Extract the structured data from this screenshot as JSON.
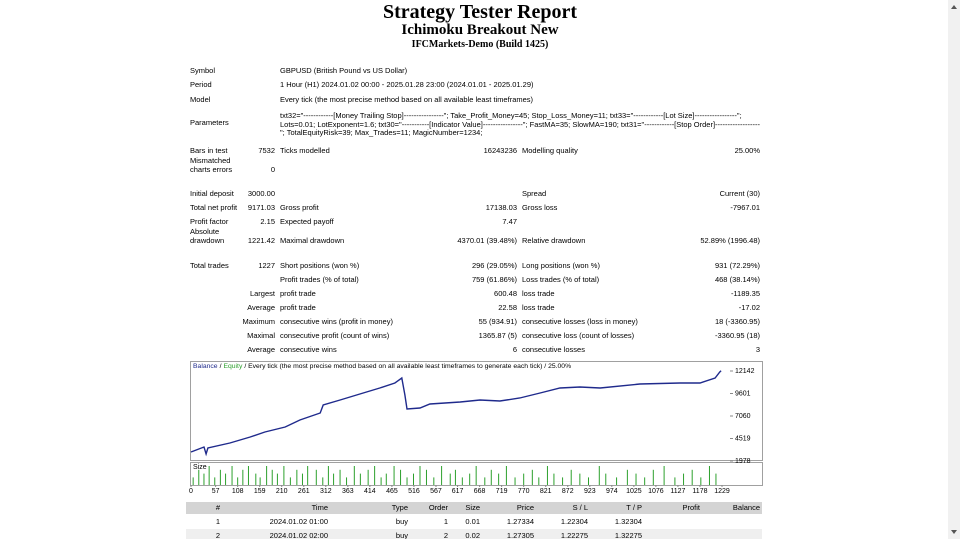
{
  "header": {
    "title": "Strategy Tester Report",
    "subtitle": "Ichimoku Breakout New",
    "server": "IFCMarkets-Demo (Build 1425)"
  },
  "info": [
    {
      "label": "Symbol",
      "value": "GBPUSD (British Pound vs US Dollar)"
    },
    {
      "label": "Period",
      "value": "1 Hour (H1) 2024.01.02 00:00 - 2025.01.28 23:00 (2024.01.01 - 2025.01.29)"
    },
    {
      "label": "Model",
      "value": "Every tick (the most precise method based on all available least timeframes)"
    },
    {
      "label": "Parameters",
      "value": "txt32=\"------------[Money Trailing Stop]----------------\"; Take_Profit_Money=45; Stop_Loss_Money=11; txt33=\"------------[Lot Size]-----------------\"; Lots=0.01; LotExponent=1.6; txt30=\"-----------[Indicator Value]----------------\"; FastMA=35; SlowMA=190; txt31=\"------------[Stop Order]------------------\"; TotalEquityRisk=39; Max_Trades=11; MagicNumber=1234;"
    }
  ],
  "stats": [
    {
      "l1": "Bars in test",
      "v1": "7532",
      "l2": "Ticks modelled",
      "v2": "16243236",
      "l3": "Modelling quality",
      "v3": "25.00%"
    },
    {
      "l1": "Mismatched charts errors",
      "v1": "0"
    },
    {
      "l1": "Initial deposit",
      "v1": "3000.00",
      "l3": "Spread",
      "v3": "Current (30)"
    },
    {
      "l1": "Total net profit",
      "v1": "9171.03",
      "l2": "Gross profit",
      "v2": "17138.03",
      "l3": "Gross loss",
      "v3": "-7967.01"
    },
    {
      "l1": "Profit factor",
      "v1": "2.15",
      "l2": "Expected payoff",
      "v2": "7.47"
    },
    {
      "l1": "Absolute drawdown",
      "v1": "1221.42",
      "l2": "Maximal drawdown",
      "v2": "4370.01 (39.48%)",
      "l3": "Relative drawdown",
      "v3": "52.89% (1996.48)"
    },
    {
      "l1": "Total trades",
      "v1": "1227",
      "l2": "Short positions (won %)",
      "v2": "296 (29.05%)",
      "l3": "Long positions (won %)",
      "v3": "931 (72.29%)"
    },
    {
      "l2": "Profit trades (% of total)",
      "v2": "759 (61.86%)",
      "l3": "Loss trades (% of total)",
      "v3": "468 (38.14%)"
    },
    {
      "v1": "Largest",
      "l2": "profit trade",
      "v2": "600.48",
      "l3": "loss trade",
      "v3": "-1189.35"
    },
    {
      "v1": "Average",
      "l2": "profit trade",
      "v2": "22.58",
      "l3": "loss trade",
      "v3": "-17.02"
    },
    {
      "v1": "Maximum",
      "l2": "consecutive wins (profit in money)",
      "v2": "55 (934.91)",
      "l3": "consecutive losses (loss in money)",
      "v3": "18 (-3360.95)"
    },
    {
      "v1": "Maximal",
      "l2": "consecutive profit (count of wins)",
      "v2": "1365.87 (5)",
      "l3": "consecutive loss (count of losses)",
      "v3": "-3360.95 (18)"
    },
    {
      "v1": "Average",
      "l2": "consecutive wins",
      "v2": "6",
      "l3": "consecutive losses",
      "v3": "3"
    }
  ],
  "balance_chart": {
    "legend": {
      "balance": "Balance",
      "separator": "/",
      "equity": "Equity",
      "description": "/ Every tick (the most precise method based on all available least timeframes to generate each tick) / 25.00%"
    },
    "xlim": [
      0,
      1229
    ],
    "xticks": [
      0,
      57,
      108,
      159,
      210,
      261,
      312,
      363,
      414,
      465,
      516,
      567,
      617,
      668,
      719,
      770,
      821,
      872,
      923,
      974,
      1025,
      1076,
      1127,
      1178,
      1229
    ],
    "ylim": [
      1978,
      12142
    ],
    "yticks": [
      12142,
      9601,
      7060,
      4519,
      1978
    ],
    "balance": {
      "name": "Balance",
      "color": "#1f2a8c",
      "x": [
        0,
        30,
        35,
        39,
        90,
        137,
        171,
        218,
        252,
        299,
        306,
        345,
        391,
        437,
        472,
        488,
        495,
        500,
        530,
        553,
        623,
        669,
        715,
        761,
        808,
        854,
        900,
        947,
        1039,
        1132,
        1178,
        1213,
        1224,
        1227
      ],
      "values": [
        3000,
        3560,
        2770,
        3446,
        4011,
        4689,
        5253,
        5818,
        6608,
        7399,
        8302,
        8867,
        9545,
        10222,
        10787,
        11352,
        9432,
        7851,
        7964,
        8415,
        8641,
        8867,
        8754,
        9093,
        9658,
        10222,
        10335,
        10222,
        10674,
        10787,
        10787,
        11352,
        12029,
        12171
      ]
    },
    "size": {
      "label": "Size",
      "color": "#2ca02c",
      "x": [
        5,
        18,
        30,
        42,
        55,
        68,
        80,
        95,
        108,
        120,
        133,
        150,
        160,
        175,
        188,
        200,
        215,
        230,
        245,
        258,
        270,
        290,
        305,
        318,
        330,
        345,
        360,
        378,
        392,
        410,
        425,
        440,
        452,
        470,
        485,
        500,
        515,
        530,
        545,
        562,
        580,
        600,
        612,
        628,
        645,
        660,
        680,
        695,
        712,
        730,
        750,
        770,
        790,
        805,
        825,
        840,
        860,
        880,
        900,
        920,
        945,
        960,
        985,
        1010,
        1030,
        1050,
        1070,
        1095,
        1120,
        1140,
        1160,
        1180,
        1200,
        1215
      ],
      "values": [
        2,
        4,
        3,
        5,
        2,
        4,
        3,
        5,
        2,
        4,
        5,
        3,
        2,
        5,
        4,
        3,
        5,
        2,
        4,
        3,
        5,
        4,
        2,
        5,
        3,
        4,
        2,
        5,
        3,
        4,
        5,
        2,
        3,
        5,
        4,
        2,
        3,
        5,
        4,
        2,
        5,
        3,
        4,
        2,
        3,
        5,
        2,
        4,
        3,
        5,
        2,
        3,
        4,
        2,
        5,
        3,
        2,
        4,
        3,
        2,
        5,
        3,
        2,
        4,
        3,
        2,
        4,
        5,
        2,
        3,
        4,
        2,
        5,
        3
      ]
    }
  },
  "table": {
    "columns": [
      "#",
      "Time",
      "Type",
      "Order",
      "Size",
      "Price",
      "S / L",
      "T / P",
      "Profit",
      "Balance"
    ],
    "rows": [
      [
        "1",
        "2024.01.02 01:00",
        "buy",
        "1",
        "0.01",
        "1.27334",
        "1.22304",
        "1.32304"
      ],
      [
        "2",
        "2024.01.02 02:00",
        "buy",
        "2",
        "0.02",
        "1.27305",
        "1.22275",
        "1.32275"
      ]
    ]
  }
}
